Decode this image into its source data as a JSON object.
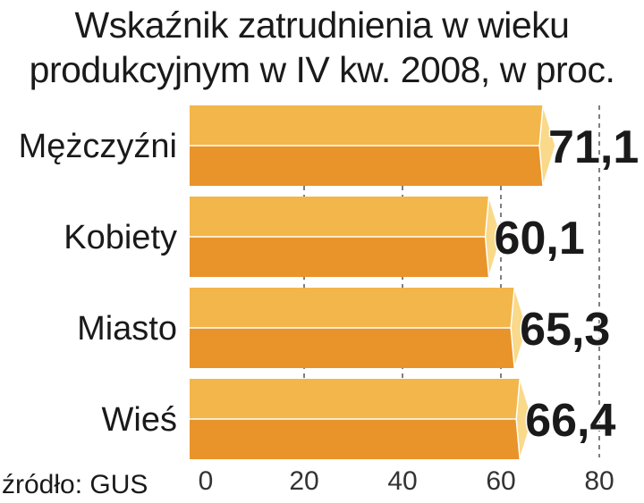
{
  "chart_data": {
    "type": "bar",
    "orientation": "horizontal",
    "title_lines": [
      "Wskaźnik zatrudnienia w wieku",
      "produkcyjnym w IV kw. 2008, w proc."
    ],
    "categories": [
      "Mężczyźni",
      "Kobiety",
      "Miasto",
      "Wieś"
    ],
    "values": [
      71.1,
      60.1,
      65.3,
      66.4
    ],
    "value_labels": [
      "71,1",
      "60,1",
      "65,3",
      "66,4"
    ],
    "xlim": [
      0,
      80
    ],
    "x_ticks": [
      0,
      20,
      40,
      60,
      80
    ],
    "x_tick_labels": [
      "0",
      "20",
      "40",
      "60",
      "80"
    ],
    "grid": "vertical dashed",
    "source": "źródło: GUS",
    "colors": {
      "bar_top": "#f3b64a",
      "bar_bottom": "#e8942a",
      "bar_end": "#f9d98a",
      "grid": "#555555"
    }
  }
}
